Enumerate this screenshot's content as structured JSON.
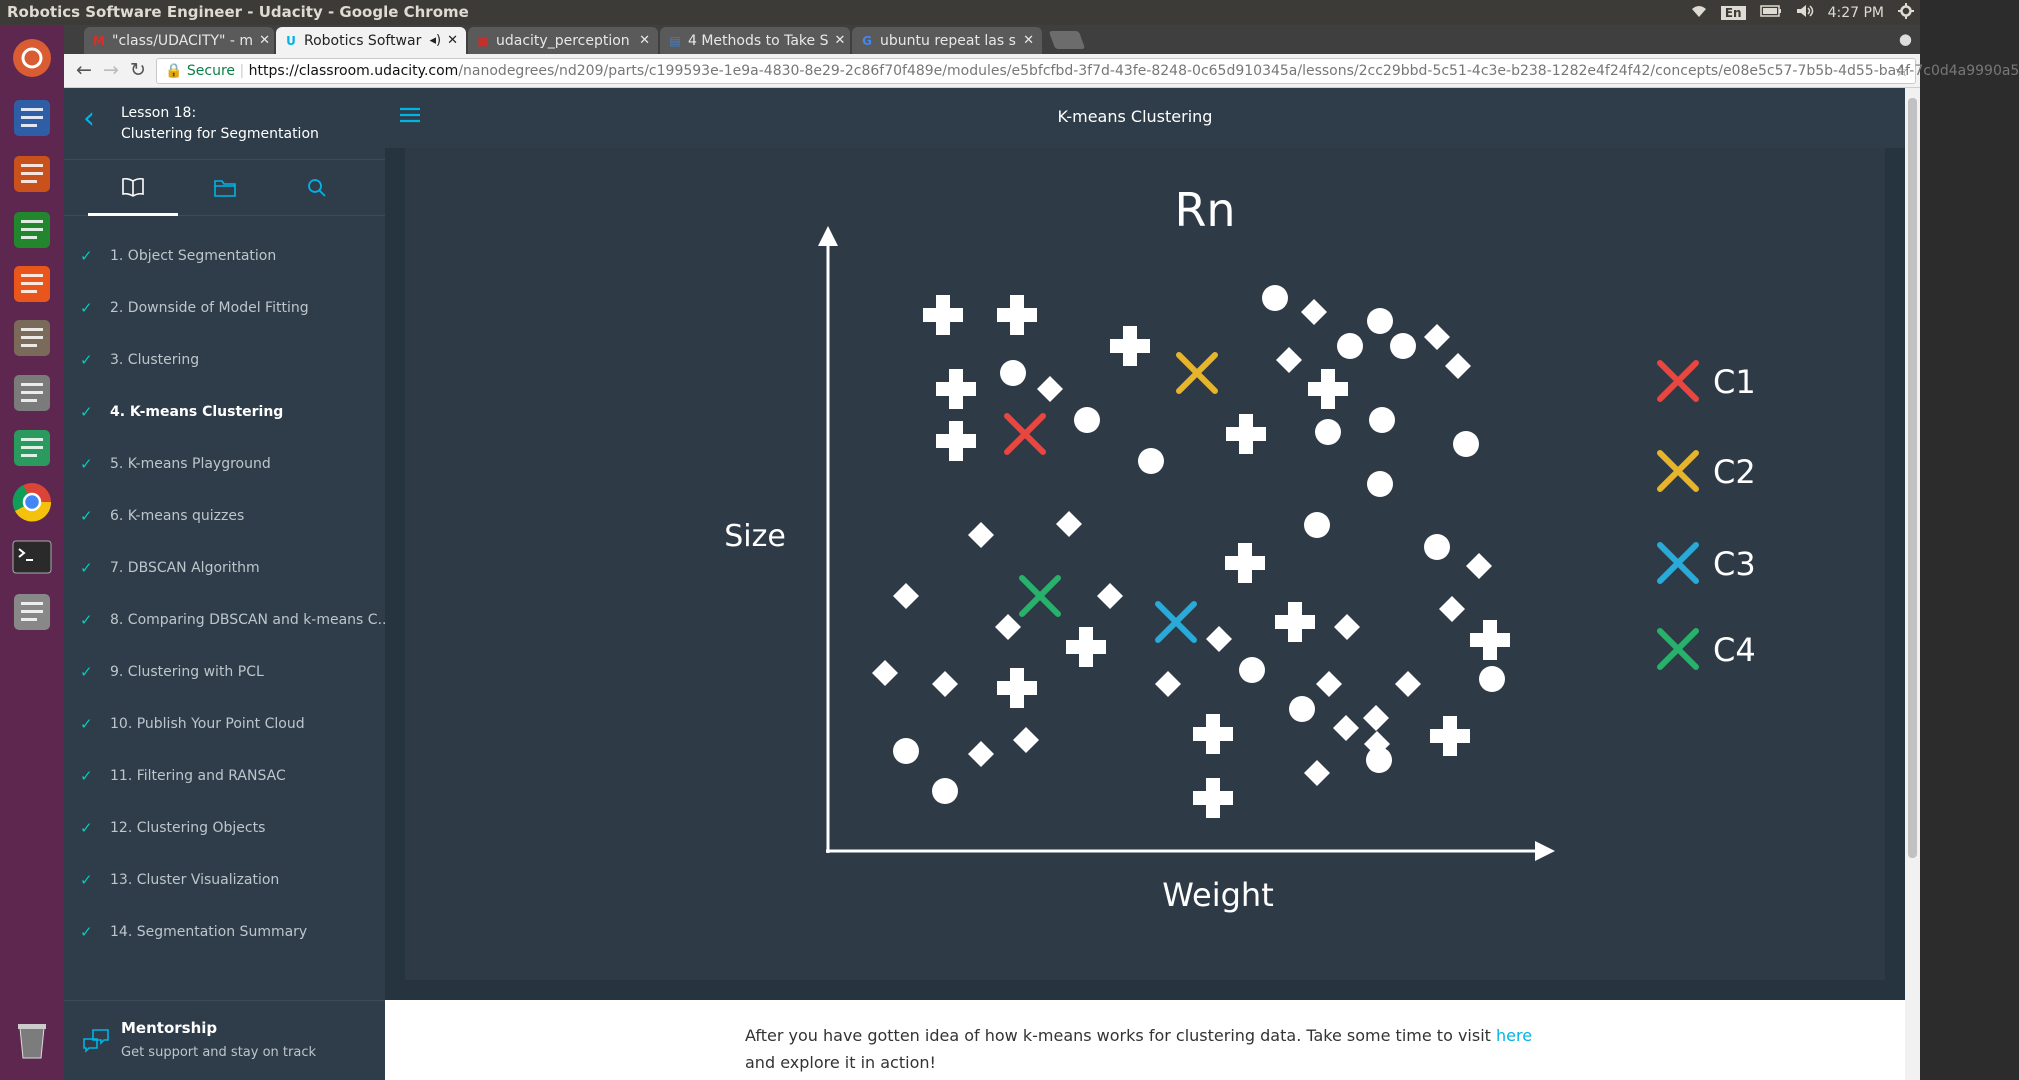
{
  "os": {
    "window_title": "Robotics Software Engineer - Udacity - Google Chrome",
    "language": "En",
    "time": "4:27 PM"
  },
  "launcher": [
    {
      "name": "ubuntu-dash-icon",
      "color": "#d95c32"
    },
    {
      "name": "libreoffice-writer-icon",
      "color": "#2e5fa6"
    },
    {
      "name": "libreoffice-impress-icon",
      "color": "#c9521c"
    },
    {
      "name": "libreoffice-calc-icon",
      "color": "#22862f"
    },
    {
      "name": "software-center-icon",
      "color": "#e8561c"
    },
    {
      "name": "files-icon",
      "color": "#7a6a5a"
    },
    {
      "name": "system-settings-icon",
      "color": "#7b7b7b"
    },
    {
      "name": "atom-icon",
      "color": "#2b9a5e"
    },
    {
      "name": "chrome-icon",
      "color": "#ffffff"
    },
    {
      "name": "terminal-icon",
      "color": "#2a2a2a"
    },
    {
      "name": "disk-icon",
      "color": "#888888"
    },
    {
      "name": "trash-icon",
      "color": "#7c7c7c"
    }
  ],
  "tabs": [
    {
      "label": "\"class/UDACITY\" - m",
      "favicon": "M",
      "favicon_color": "#d93025",
      "active": false
    },
    {
      "label": "Robotics Softwar",
      "favicon": "U",
      "favicon_color": "#02b3e4",
      "active": true
    },
    {
      "label": "udacity_perception",
      "favicon": "■",
      "favicon_color": "#c4302b",
      "active": false
    },
    {
      "label": "4 Methods to Take S",
      "favicon": "▤",
      "favicon_color": "#4a7dbf",
      "active": false
    },
    {
      "label": "ubuntu repeat las s",
      "favicon": "G",
      "favicon_color": "#4285f4",
      "active": false
    }
  ],
  "address": {
    "secure_label": "Secure",
    "host": "https://classroom.udacity.com",
    "path": "/nanodegrees/nd209/parts/c199593e-1e9a-4830-8e29-2c86f70f489e/modules/e5bfcfbd-3f7d-43fe-8248-0c65d910345a/lessons/2cc29bbd-5c51-4c3e-b238-1282e4f24f42/concepts/e08e5c57-7b5b-4d55-ba4f-7c0d4a9990a5"
  },
  "sidebar": {
    "lesson_number": "Lesson 18:",
    "lesson_title": "Clustering for Segmentation",
    "items": [
      {
        "label": "1. Object Segmentation",
        "current": false
      },
      {
        "label": "2. Downside of Model Fitting",
        "current": false
      },
      {
        "label": "3. Clustering",
        "current": false
      },
      {
        "label": "4. K-means Clustering",
        "current": true
      },
      {
        "label": "5. K-means Playground",
        "current": false
      },
      {
        "label": "6. K-means quizzes",
        "current": false
      },
      {
        "label": "7. DBSCAN Algorithm",
        "current": false
      },
      {
        "label": "8. Comparing DBSCAN and k-means C...",
        "current": false
      },
      {
        "label": "9. Clustering with PCL",
        "current": false
      },
      {
        "label": "10. Publish Your Point Cloud",
        "current": false
      },
      {
        "label": "11. Filtering and RANSAC",
        "current": false
      },
      {
        "label": "12. Clustering Objects",
        "current": false
      },
      {
        "label": "13. Cluster Visualization",
        "current": false
      },
      {
        "label": "14. Segmentation Summary",
        "current": false
      }
    ],
    "mentorship_title": "Mentorship",
    "mentorship_subtitle": "Get support and stay on track"
  },
  "content": {
    "title": "K-means Clustering",
    "text_before": "After you have gotten idea of how k-means works for clustering data. Take some time to visit ",
    "link": "here",
    "text_after": " and explore it in action!"
  },
  "video": {
    "chart_title": "Rn",
    "y_label": "Size",
    "x_label": "Weight",
    "legend": [
      {
        "label": "C1",
        "color": "#e8463f"
      },
      {
        "label": "C2",
        "color": "#e7b52c"
      },
      {
        "label": "C3",
        "color": "#29aad8"
      },
      {
        "label": "C4",
        "color": "#27b26b"
      }
    ]
  }
}
